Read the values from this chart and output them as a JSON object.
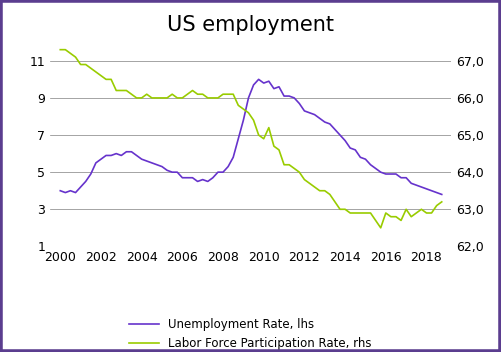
{
  "title": "US employment",
  "title_fontsize": 15,
  "border_color": "#5b3d8f",
  "purple_color": "#6633cc",
  "green_color": "#99cc00",
  "ylim_left": [
    1,
    12
  ],
  "ylim_right": [
    62.0,
    67.5
  ],
  "yticks_left": [
    1,
    3,
    5,
    7,
    9,
    11
  ],
  "yticks_right": [
    62.0,
    63.0,
    64.0,
    65.0,
    66.0,
    67.0
  ],
  "xticks": [
    2000,
    2002,
    2004,
    2006,
    2008,
    2010,
    2012,
    2014,
    2016,
    2018
  ],
  "legend_purple": "Unemployment Rate, lhs",
  "legend_green": "Labor Force Participation Rate, rhs",
  "unemployment_rate": [
    [
      2000.0,
      4.0
    ],
    [
      2000.25,
      3.9
    ],
    [
      2000.5,
      4.0
    ],
    [
      2000.75,
      3.9
    ],
    [
      2001.0,
      4.2
    ],
    [
      2001.25,
      4.5
    ],
    [
      2001.5,
      4.9
    ],
    [
      2001.75,
      5.5
    ],
    [
      2002.0,
      5.7
    ],
    [
      2002.25,
      5.9
    ],
    [
      2002.5,
      5.9
    ],
    [
      2002.75,
      6.0
    ],
    [
      2003.0,
      5.9
    ],
    [
      2003.25,
      6.1
    ],
    [
      2003.5,
      6.1
    ],
    [
      2003.75,
      5.9
    ],
    [
      2004.0,
      5.7
    ],
    [
      2004.25,
      5.6
    ],
    [
      2004.5,
      5.5
    ],
    [
      2004.75,
      5.4
    ],
    [
      2005.0,
      5.3
    ],
    [
      2005.25,
      5.1
    ],
    [
      2005.5,
      5.0
    ],
    [
      2005.75,
      5.0
    ],
    [
      2006.0,
      4.7
    ],
    [
      2006.25,
      4.7
    ],
    [
      2006.5,
      4.7
    ],
    [
      2006.75,
      4.5
    ],
    [
      2007.0,
      4.6
    ],
    [
      2007.25,
      4.5
    ],
    [
      2007.5,
      4.7
    ],
    [
      2007.75,
      5.0
    ],
    [
      2008.0,
      5.0
    ],
    [
      2008.25,
      5.3
    ],
    [
      2008.5,
      5.8
    ],
    [
      2008.75,
      6.8
    ],
    [
      2009.0,
      7.8
    ],
    [
      2009.25,
      9.0
    ],
    [
      2009.5,
      9.7
    ],
    [
      2009.75,
      10.0
    ],
    [
      2010.0,
      9.8
    ],
    [
      2010.25,
      9.9
    ],
    [
      2010.5,
      9.5
    ],
    [
      2010.75,
      9.6
    ],
    [
      2011.0,
      9.1
    ],
    [
      2011.25,
      9.1
    ],
    [
      2011.5,
      9.0
    ],
    [
      2011.75,
      8.7
    ],
    [
      2012.0,
      8.3
    ],
    [
      2012.25,
      8.2
    ],
    [
      2012.5,
      8.1
    ],
    [
      2012.75,
      7.9
    ],
    [
      2013.0,
      7.7
    ],
    [
      2013.25,
      7.6
    ],
    [
      2013.5,
      7.3
    ],
    [
      2013.75,
      7.0
    ],
    [
      2014.0,
      6.7
    ],
    [
      2014.25,
      6.3
    ],
    [
      2014.5,
      6.2
    ],
    [
      2014.75,
      5.8
    ],
    [
      2015.0,
      5.7
    ],
    [
      2015.25,
      5.4
    ],
    [
      2015.5,
      5.2
    ],
    [
      2015.75,
      5.0
    ],
    [
      2016.0,
      4.9
    ],
    [
      2016.25,
      4.9
    ],
    [
      2016.5,
      4.9
    ],
    [
      2016.75,
      4.7
    ],
    [
      2017.0,
      4.7
    ],
    [
      2017.25,
      4.4
    ],
    [
      2017.5,
      4.3
    ],
    [
      2017.75,
      4.2
    ],
    [
      2018.0,
      4.1
    ],
    [
      2018.25,
      4.0
    ],
    [
      2018.5,
      3.9
    ],
    [
      2018.75,
      3.8
    ]
  ],
  "labor_force_participation": [
    [
      2000.0,
      67.3
    ],
    [
      2000.25,
      67.3
    ],
    [
      2000.5,
      67.2
    ],
    [
      2000.75,
      67.1
    ],
    [
      2001.0,
      66.9
    ],
    [
      2001.25,
      66.9
    ],
    [
      2001.5,
      66.8
    ],
    [
      2001.75,
      66.7
    ],
    [
      2002.0,
      66.6
    ],
    [
      2002.25,
      66.5
    ],
    [
      2002.5,
      66.5
    ],
    [
      2002.75,
      66.2
    ],
    [
      2003.0,
      66.2
    ],
    [
      2003.25,
      66.2
    ],
    [
      2003.5,
      66.1
    ],
    [
      2003.75,
      66.0
    ],
    [
      2004.0,
      66.0
    ],
    [
      2004.25,
      66.1
    ],
    [
      2004.5,
      66.0
    ],
    [
      2004.75,
      66.0
    ],
    [
      2005.0,
      66.0
    ],
    [
      2005.25,
      66.0
    ],
    [
      2005.5,
      66.1
    ],
    [
      2005.75,
      66.0
    ],
    [
      2006.0,
      66.0
    ],
    [
      2006.25,
      66.1
    ],
    [
      2006.5,
      66.2
    ],
    [
      2006.75,
      66.1
    ],
    [
      2007.0,
      66.1
    ],
    [
      2007.25,
      66.0
    ],
    [
      2007.5,
      66.0
    ],
    [
      2007.75,
      66.0
    ],
    [
      2008.0,
      66.1
    ],
    [
      2008.25,
      66.1
    ],
    [
      2008.5,
      66.1
    ],
    [
      2008.75,
      65.8
    ],
    [
      2009.0,
      65.7
    ],
    [
      2009.25,
      65.6
    ],
    [
      2009.5,
      65.4
    ],
    [
      2009.75,
      65.0
    ],
    [
      2010.0,
      64.9
    ],
    [
      2010.25,
      65.2
    ],
    [
      2010.5,
      64.7
    ],
    [
      2010.75,
      64.6
    ],
    [
      2011.0,
      64.2
    ],
    [
      2011.25,
      64.2
    ],
    [
      2011.5,
      64.1
    ],
    [
      2011.75,
      64.0
    ],
    [
      2012.0,
      63.8
    ],
    [
      2012.25,
      63.7
    ],
    [
      2012.5,
      63.6
    ],
    [
      2012.75,
      63.5
    ],
    [
      2013.0,
      63.5
    ],
    [
      2013.25,
      63.4
    ],
    [
      2013.5,
      63.2
    ],
    [
      2013.75,
      63.0
    ],
    [
      2014.0,
      63.0
    ],
    [
      2014.25,
      62.9
    ],
    [
      2014.5,
      62.9
    ],
    [
      2014.75,
      62.9
    ],
    [
      2015.0,
      62.9
    ],
    [
      2015.25,
      62.9
    ],
    [
      2015.5,
      62.7
    ],
    [
      2015.75,
      62.5
    ],
    [
      2016.0,
      62.9
    ],
    [
      2016.25,
      62.8
    ],
    [
      2016.5,
      62.8
    ],
    [
      2016.75,
      62.7
    ],
    [
      2017.0,
      63.0
    ],
    [
      2017.25,
      62.8
    ],
    [
      2017.5,
      62.9
    ],
    [
      2017.75,
      63.0
    ],
    [
      2018.0,
      62.9
    ],
    [
      2018.25,
      62.9
    ],
    [
      2018.5,
      63.1
    ],
    [
      2018.75,
      63.2
    ]
  ]
}
